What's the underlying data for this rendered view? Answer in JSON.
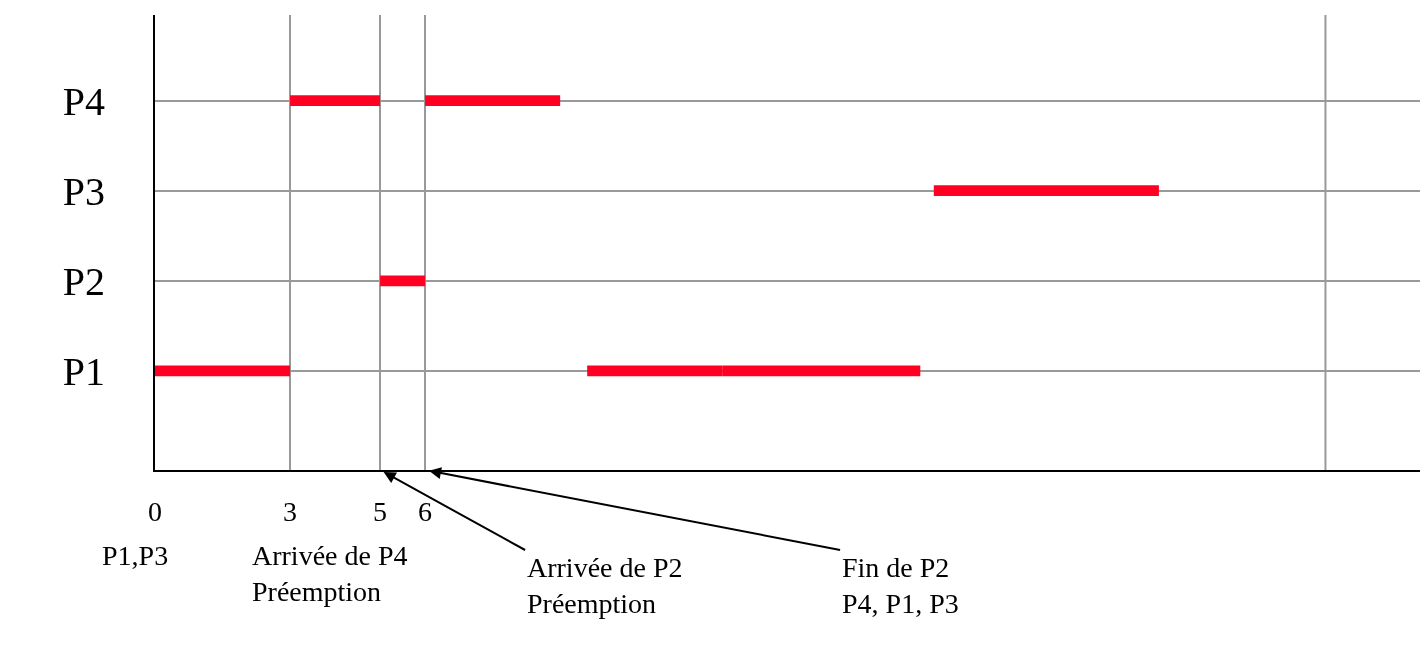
{
  "chart_data": {
    "type": "bar",
    "orientation": "horizontal",
    "categories": [
      "P4",
      "P3",
      "P2",
      "P1"
    ],
    "series": [
      {
        "color": "#ff0022",
        "values": [
          2,
          5,
          1,
          3
        ],
        "base": [
          3,
          17.3,
          5,
          0
        ]
      },
      {
        "color": "#ff0022",
        "values": [
          3,
          null,
          null,
          3
        ],
        "base": [
          6,
          null,
          null,
          9.6
        ]
      },
      {
        "color": "#ff0022",
        "values": [
          null,
          null,
          null,
          4.4
        ],
        "base": [
          null,
          null,
          null,
          12.6
        ]
      }
    ],
    "xlim": [
      0,
      28.1
    ],
    "xticks": [
      0,
      3,
      5,
      6
    ],
    "ref_lines": [
      {
        "axis": "x",
        "value": 26,
        "color": "#999999"
      }
    ],
    "grid": true,
    "annotations": [
      "P1,P3",
      "Arrivée de P4\nPréemption",
      "Arrivée de P2\nPréemption",
      "Fin de P2\nP4, P1, P3"
    ]
  }
}
